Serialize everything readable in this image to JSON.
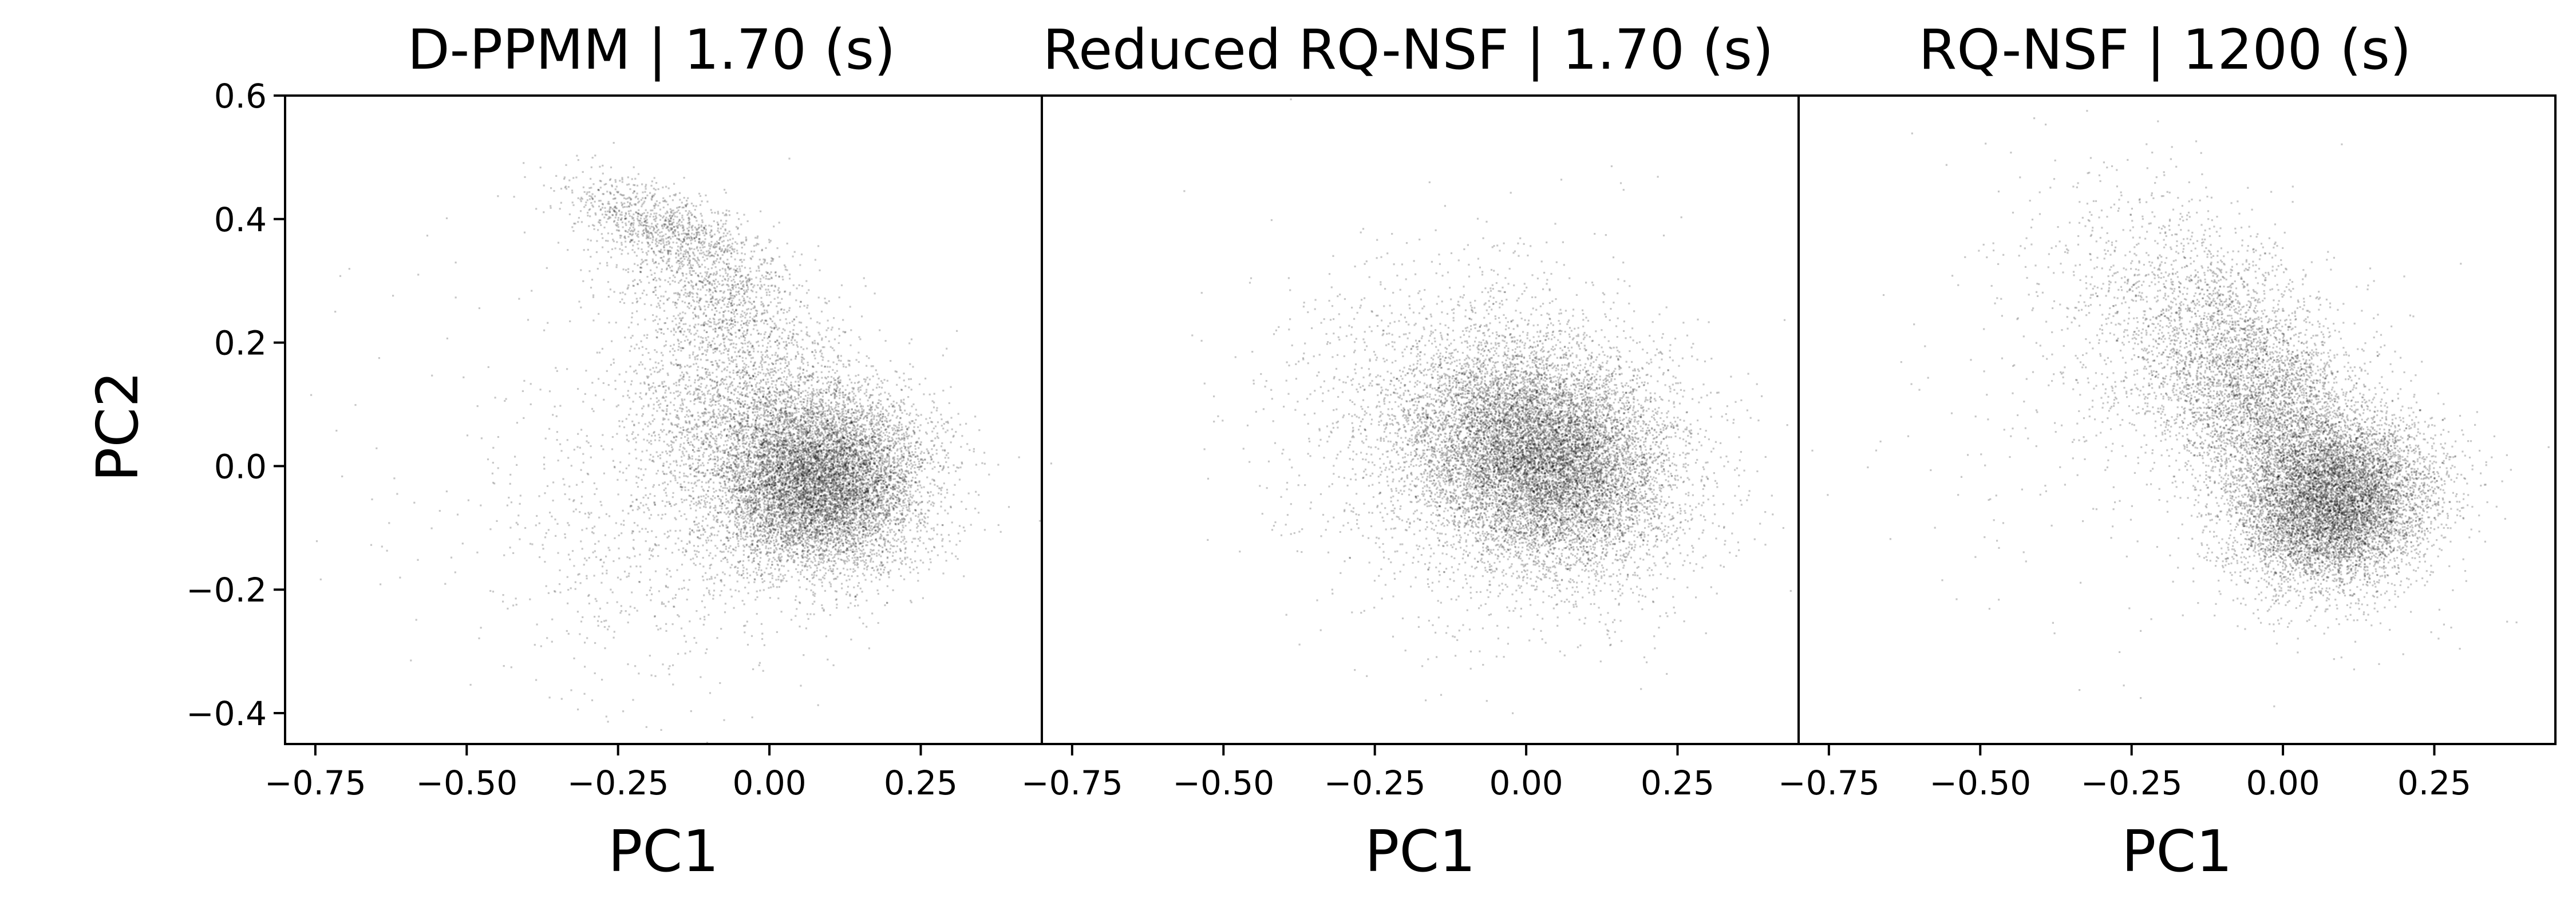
{
  "figure": {
    "ylabel": "PC2",
    "point_color": "#000000",
    "background": "#ffffff"
  },
  "chart_data": [
    {
      "type": "scatter",
      "title": "D-PPMM | 1.70 (s)",
      "xlabel": "PC1",
      "ylabel": "PC2",
      "xlim": [
        -0.8,
        0.45
      ],
      "ylim": [
        -0.45,
        0.6
      ],
      "xticks": [
        -0.75,
        -0.5,
        -0.25,
        0.0,
        0.25
      ],
      "xtick_labels": [
        "−0.75",
        "−0.50",
        "−0.25",
        "0.00",
        "0.25"
      ],
      "yticks": [
        -0.4,
        -0.2,
        0.0,
        0.2,
        0.4,
        0.6
      ],
      "ytick_labels": [
        "−0.4",
        "−0.2",
        "0.0",
        "0.2",
        "0.4",
        "0.6"
      ],
      "grid": false,
      "legend": "none",
      "series": [
        {
          "clusters": [
            {
              "cx": 0.09,
              "cy": -0.03,
              "sx": 0.085,
              "sy": 0.07,
              "rho": 0.1,
              "n": 7500
            },
            {
              "cx": 0.0,
              "cy": 0.05,
              "sx": 0.11,
              "sy": 0.095,
              "rho": -0.35,
              "n": 3500
            },
            {
              "cx": -0.18,
              "cy": 0.39,
              "sx": 0.08,
              "sy": 0.04,
              "rho": -0.6,
              "n": 900
            },
            {
              "cx": -0.08,
              "cy": 0.28,
              "sx": 0.09,
              "sy": 0.07,
              "rho": -0.55,
              "n": 1100
            },
            {
              "cx": -0.15,
              "cy": -0.1,
              "sx": 0.16,
              "sy": 0.13,
              "rho": 0.1,
              "n": 800
            },
            {
              "cx": -0.35,
              "cy": 0.05,
              "sx": 0.25,
              "sy": 0.2,
              "rho": 0.0,
              "n": 160
            }
          ]
        }
      ]
    },
    {
      "type": "scatter",
      "title": "Reduced RQ-NSF | 1.70 (s)",
      "xlabel": "PC1",
      "xlim": [
        -0.8,
        0.45
      ],
      "ylim": [
        -0.45,
        0.6
      ],
      "xticks": [
        -0.75,
        -0.5,
        -0.25,
        0.0,
        0.25
      ],
      "xtick_labels": [
        "−0.75",
        "−0.50",
        "−0.25",
        "0.00",
        "0.25"
      ],
      "grid": false,
      "legend": "none",
      "series": [
        {
          "clusters": [
            {
              "cx": 0.03,
              "cy": 0.01,
              "sx": 0.1,
              "sy": 0.085,
              "rho": -0.2,
              "n": 9000
            },
            {
              "cx": -0.02,
              "cy": 0.04,
              "sx": 0.15,
              "sy": 0.12,
              "rho": -0.15,
              "n": 3500
            },
            {
              "cx": -0.15,
              "cy": 0.02,
              "sx": 0.22,
              "sy": 0.17,
              "rho": 0.0,
              "n": 300
            }
          ]
        }
      ]
    },
    {
      "type": "scatter",
      "title": "RQ-NSF | 1200 (s)",
      "xlabel": "PC1",
      "xlim": [
        -0.8,
        0.45
      ],
      "ylim": [
        -0.45,
        0.6
      ],
      "xticks": [
        -0.75,
        -0.5,
        -0.25,
        0.0,
        0.25
      ],
      "xtick_labels": [
        "−0.75",
        "−0.50",
        "−0.25",
        "0.00",
        "0.25"
      ],
      "grid": false,
      "legend": "none",
      "series": [
        {
          "clusters": [
            {
              "cx": 0.09,
              "cy": -0.06,
              "sx": 0.08,
              "sy": 0.065,
              "rho": 0.2,
              "n": 7000
            },
            {
              "cx": -0.02,
              "cy": 0.08,
              "sx": 0.1,
              "sy": 0.12,
              "rho": -0.55,
              "n": 5000
            },
            {
              "cx": -0.15,
              "cy": 0.22,
              "sx": 0.13,
              "sy": 0.12,
              "rho": -0.3,
              "n": 1200
            },
            {
              "cx": -0.25,
              "cy": 0.05,
              "sx": 0.2,
              "sy": 0.18,
              "rho": 0.0,
              "n": 250
            }
          ]
        }
      ]
    }
  ]
}
